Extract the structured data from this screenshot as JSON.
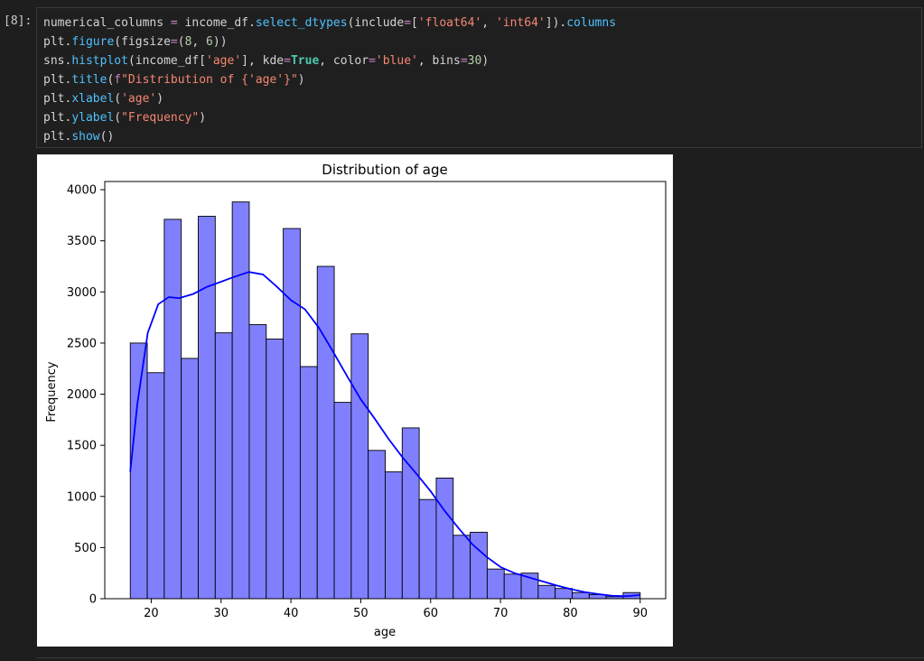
{
  "cell": {
    "prompt": "[8]:",
    "code_lines": [
      [
        [
          "pl",
          "numerical_columns "
        ],
        [
          "op",
          "="
        ],
        [
          "pl",
          " income_df."
        ],
        [
          "fn",
          "select_dtypes"
        ],
        [
          "pl",
          "(include"
        ],
        [
          "op",
          "="
        ],
        [
          "pl",
          "["
        ],
        [
          "str",
          "'float64'"
        ],
        [
          "pl",
          ", "
        ],
        [
          "str",
          "'int64'"
        ],
        [
          "pl",
          "])."
        ],
        [
          "fn",
          "columns"
        ]
      ],
      [
        [
          "pl",
          "plt."
        ],
        [
          "fn",
          "figure"
        ],
        [
          "pl",
          "(figsize"
        ],
        [
          "op",
          "="
        ],
        [
          "pl",
          "("
        ],
        [
          "num",
          "8"
        ],
        [
          "pl",
          ", "
        ],
        [
          "num",
          "6"
        ],
        [
          "pl",
          "))"
        ]
      ],
      [
        [
          "pl",
          "sns."
        ],
        [
          "fn",
          "histplot"
        ],
        [
          "pl",
          "(income_df["
        ],
        [
          "str",
          "'age'"
        ],
        [
          "pl",
          "], kde"
        ],
        [
          "op",
          "="
        ],
        [
          "kw",
          "True"
        ],
        [
          "pl",
          ", color"
        ],
        [
          "op",
          "="
        ],
        [
          "str",
          "'blue'"
        ],
        [
          "pl",
          ", bins"
        ],
        [
          "op",
          "="
        ],
        [
          "num",
          "30"
        ],
        [
          "pl",
          ")"
        ]
      ],
      [
        [
          "pl",
          "plt."
        ],
        [
          "fn",
          "title"
        ],
        [
          "pl",
          "("
        ],
        [
          "op",
          "f"
        ],
        [
          "str",
          "\"Distribution of {"
        ],
        [
          "str",
          "'age'"
        ],
        [
          "str",
          "}\""
        ],
        [
          "pl",
          ")"
        ]
      ],
      [
        [
          "pl",
          "plt."
        ],
        [
          "fn",
          "xlabel"
        ],
        [
          "pl",
          "("
        ],
        [
          "str",
          "'age'"
        ],
        [
          "pl",
          ")"
        ]
      ],
      [
        [
          "pl",
          "plt."
        ],
        [
          "fn",
          "ylabel"
        ],
        [
          "pl",
          "("
        ],
        [
          "str",
          "\"Frequency\""
        ],
        [
          "pl",
          ")"
        ]
      ],
      [
        [
          "pl",
          "plt."
        ],
        [
          "fn",
          "show"
        ],
        [
          "pl",
          "()"
        ]
      ]
    ]
  },
  "colors": {
    "bar_fill": "#8080ff",
    "bar_edge": "#000000",
    "kde_line": "#0000ff"
  },
  "chart_data": {
    "type": "bar",
    "title": "Distribution of age",
    "xlabel": "age",
    "ylabel": "Frequency",
    "xlim": [
      13.35,
      93.65
    ],
    "ylim": [
      0,
      4080
    ],
    "xticks": [
      20,
      30,
      40,
      50,
      60,
      70,
      80,
      90
    ],
    "yticks": [
      0,
      500,
      1000,
      1500,
      2000,
      2500,
      3000,
      3500,
      4000
    ],
    "bin_edges": [
      17.0,
      19.4333,
      21.8667,
      24.3,
      26.7333,
      29.1667,
      31.6,
      34.0333,
      36.4667,
      38.9,
      41.3333,
      43.7667,
      46.2,
      48.6333,
      51.0667,
      53.5,
      55.9333,
      58.3667,
      60.8,
      63.2333,
      65.6667,
      68.1,
      70.5333,
      72.9667,
      75.4,
      77.8333,
      80.2667,
      82.7,
      85.1333,
      87.5667,
      90.0
    ],
    "values": [
      2500,
      2210,
      3710,
      2350,
      3740,
      2600,
      3880,
      2680,
      2540,
      3620,
      2270,
      3250,
      1920,
      2590,
      1450,
      1240,
      1670,
      970,
      1180,
      620,
      650,
      290,
      240,
      250,
      130,
      100,
      60,
      40,
      20,
      60
    ],
    "kde": {
      "x": [
        17.0,
        18.0,
        19.5,
        21.0,
        22.5,
        24.0,
        26.0,
        28.0,
        30.0,
        32.0,
        34.0,
        36.0,
        38.0,
        40.0,
        42.0,
        44.0,
        46.0,
        48.0,
        50.0,
        52.0,
        54.0,
        56.0,
        58.0,
        60.0,
        62.0,
        64.0,
        66.0,
        68.0,
        70.0,
        72.0,
        74.0,
        76.0,
        78.0,
        80.0,
        82.0,
        84.0,
        86.0,
        88.0,
        90.0
      ],
      "y": [
        1240,
        1900,
        2600,
        2880,
        2950,
        2940,
        2980,
        3050,
        3100,
        3150,
        3195,
        3170,
        3050,
        2920,
        2830,
        2650,
        2420,
        2180,
        1950,
        1760,
        1560,
        1380,
        1220,
        1050,
        860,
        690,
        530,
        410,
        310,
        250,
        210,
        170,
        130,
        95,
        65,
        45,
        28,
        25,
        35
      ]
    }
  }
}
